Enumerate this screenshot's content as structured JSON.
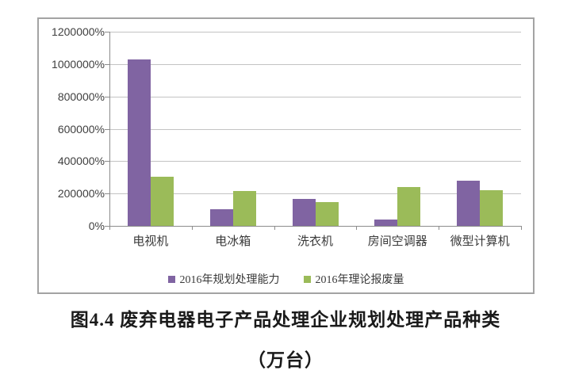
{
  "chart_data": {
    "type": "bar",
    "categories": [
      "电视机",
      "电冰箱",
      "洗衣机",
      "房间空调器",
      "微型计算机"
    ],
    "series": [
      {
        "name": "2016年规划处理能力",
        "color": "#8064A2",
        "values": [
          1030000,
          105000,
          165000,
          40000,
          280000
        ]
      },
      {
        "name": "2016年理论报废量",
        "color": "#9BBB59",
        "values": [
          305000,
          215000,
          145000,
          240000,
          220000
        ]
      }
    ],
    "title": "",
    "xlabel": "",
    "ylabel": "",
    "ylim": [
      0,
      1200000
    ],
    "ytick_step": 200000,
    "yticks": [
      "0%",
      "200000%",
      "400000%",
      "600000%",
      "800000%",
      "1000000%",
      "1200000%"
    ],
    "grid": true,
    "legend_position": "bottom",
    "colors": {
      "gridline": "#c3c3c3",
      "axis": "#8c8c8c",
      "tick_text": "#3f3f3f",
      "frame_border": "#a3a3a3",
      "background": "#ffffff"
    }
  },
  "caption": {
    "line1": "图4.4 废弃电器电子产品处理企业规划处理产品种类",
    "line2": "（万台）"
  }
}
